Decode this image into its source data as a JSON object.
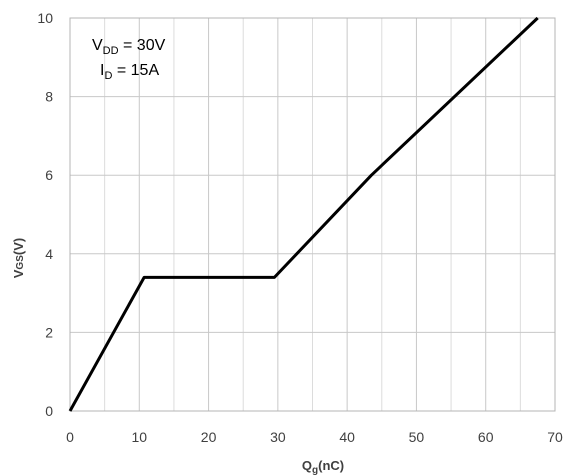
{
  "chart_data": {
    "type": "line",
    "xlabel": {
      "base": "Q",
      "sub": "g",
      "rest": "(nC)"
    },
    "ylabel": {
      "base": "V",
      "sub": "GS",
      "rest": "(V)"
    },
    "xlim": [
      0,
      70
    ],
    "ylim": [
      0,
      10
    ],
    "xticks": [
      "0",
      "10",
      "20",
      "30",
      "40",
      "50",
      "60",
      "70"
    ],
    "yticks": [
      "0",
      "2",
      "4",
      "6",
      "8",
      "10"
    ],
    "grid": true,
    "series": [
      {
        "x": [
          0,
          10.7,
          29.5,
          43.5,
          67.5
        ],
        "y": [
          0,
          3.4,
          3.4,
          6.0,
          10.0
        ]
      }
    ],
    "annotations": [
      {
        "base": "V",
        "sub": "DD",
        "rest": " = 30V"
      },
      {
        "base": "I",
        "sub": "D",
        "rest": " = 15A"
      }
    ],
    "colors": {
      "line": "#000000",
      "grid": "#c8c8c8",
      "frame": "#b4b4b4"
    }
  }
}
